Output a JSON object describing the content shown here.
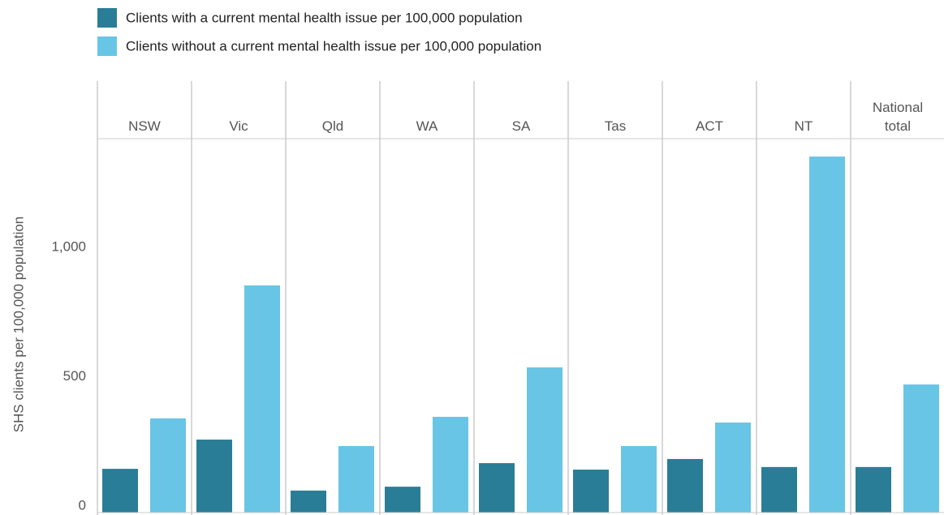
{
  "chart_data": {
    "type": "bar",
    "y_label": "SHS clients per 100,000 population",
    "categories": [
      "NSW",
      "Vic",
      "Qld",
      "WA",
      "SA",
      "Tas",
      "ACT",
      "NT",
      "National total"
    ],
    "series": [
      {
        "name": "Clients with a current mental health issue per 100,000 population",
        "color": "#2a7d97",
        "values": [
          169,
          282,
          85,
          100,
          191,
          166,
          207,
          176,
          176
        ]
      },
      {
        "name": "Clients without a current mental health issue per 100,000 population",
        "color": "#68c5e6",
        "values": [
          364,
          878,
          257,
          370,
          561,
          257,
          348,
          1376,
          495
        ]
      }
    ],
    "ylim": [
      0,
      1445
    ],
    "yticks": [
      0,
      500,
      {
        "value": 1000,
        "label": "1,000"
      }
    ]
  }
}
